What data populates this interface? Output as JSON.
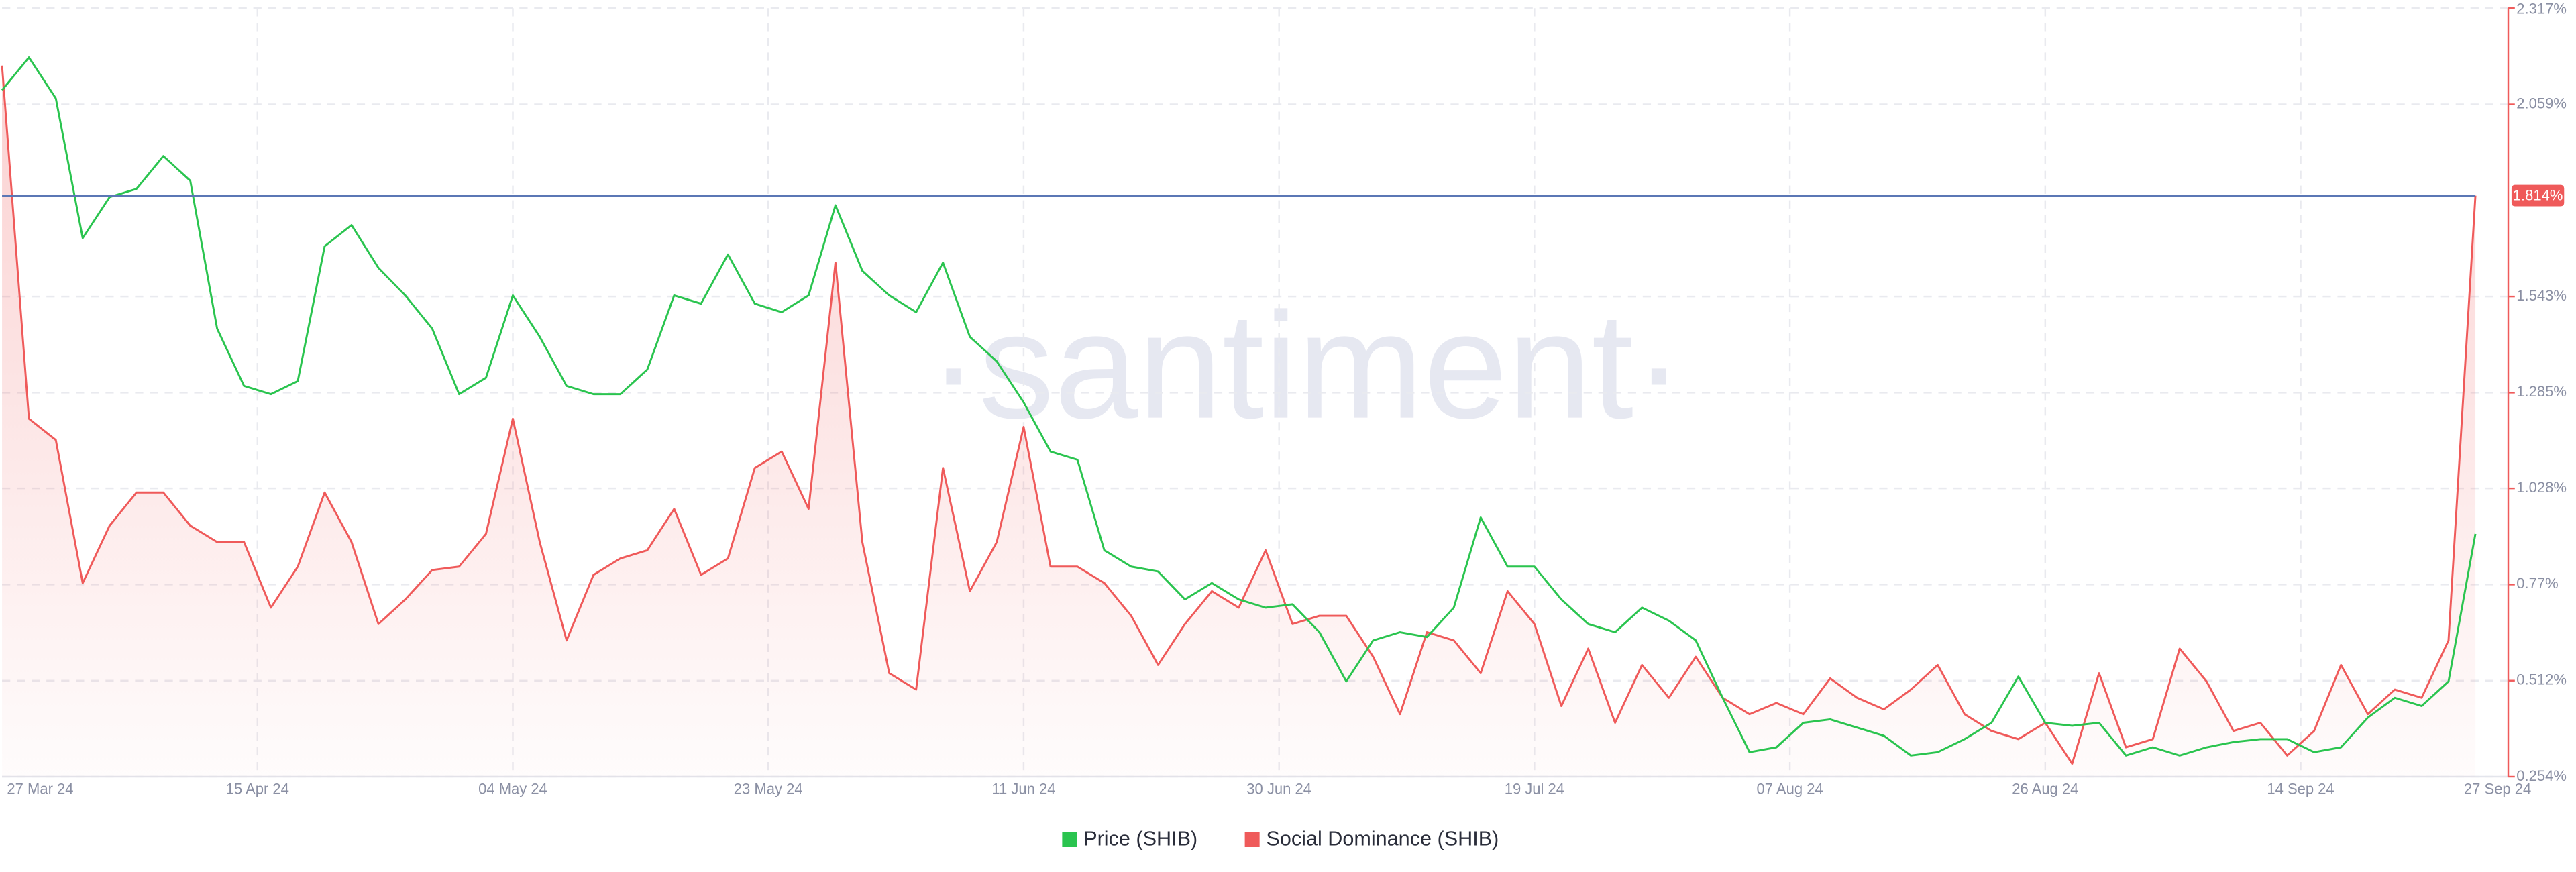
{
  "chart_data": {
    "type": "line",
    "watermark": "·santiment·",
    "x": [
      "2024-03-27",
      "2024-03-29",
      "2024-03-31",
      "2024-04-02",
      "2024-04-04",
      "2024-04-06",
      "2024-04-08",
      "2024-04-10",
      "2024-04-12",
      "2024-04-14",
      "2024-04-16",
      "2024-04-18",
      "2024-04-20",
      "2024-04-22",
      "2024-04-24",
      "2024-04-26",
      "2024-04-28",
      "2024-04-30",
      "2024-05-02",
      "2024-05-04",
      "2024-05-06",
      "2024-05-08",
      "2024-05-10",
      "2024-05-12",
      "2024-05-14",
      "2024-05-16",
      "2024-05-18",
      "2024-05-20",
      "2024-05-22",
      "2024-05-24",
      "2024-05-26",
      "2024-05-28",
      "2024-05-30",
      "2024-06-01",
      "2024-06-03",
      "2024-06-05",
      "2024-06-07",
      "2024-06-09",
      "2024-06-11",
      "2024-06-13",
      "2024-06-15",
      "2024-06-17",
      "2024-06-19",
      "2024-06-21",
      "2024-06-23",
      "2024-06-25",
      "2024-06-27",
      "2024-06-29",
      "2024-07-01",
      "2024-07-03",
      "2024-07-05",
      "2024-07-07",
      "2024-07-09",
      "2024-07-11",
      "2024-07-13",
      "2024-07-15",
      "2024-07-17",
      "2024-07-19",
      "2024-07-21",
      "2024-07-23",
      "2024-07-25",
      "2024-07-27",
      "2024-07-29",
      "2024-07-31",
      "2024-08-02",
      "2024-08-04",
      "2024-08-06",
      "2024-08-08",
      "2024-08-10",
      "2024-08-12",
      "2024-08-14",
      "2024-08-16",
      "2024-08-18",
      "2024-08-20",
      "2024-08-22",
      "2024-08-24",
      "2024-08-26",
      "2024-08-28",
      "2024-08-30",
      "2024-09-01",
      "2024-09-03",
      "2024-09-05",
      "2024-09-07",
      "2024-09-09",
      "2024-09-11",
      "2024-09-13",
      "2024-09-15",
      "2024-09-17",
      "2024-09-19",
      "2024-09-21",
      "2024-09-23",
      "2024-09-25",
      "2024-09-27"
    ],
    "xlim": [
      "2024-03-27",
      "2024-09-27"
    ],
    "xticks": [
      {
        "value": "2024-03-27",
        "label": "27 Mar 24"
      },
      {
        "value": "2024-04-15",
        "label": "15 Apr 24"
      },
      {
        "value": "2024-05-04",
        "label": "04 May 24"
      },
      {
        "value": "2024-05-23",
        "label": "23 May 24"
      },
      {
        "value": "2024-06-11",
        "label": "11 Jun 24"
      },
      {
        "value": "2024-06-30",
        "label": "30 Jun 24"
      },
      {
        "value": "2024-07-19",
        "label": "19 Jul 24"
      },
      {
        "value": "2024-08-07",
        "label": "07 Aug 24"
      },
      {
        "value": "2024-08-26",
        "label": "26 Aug 24"
      },
      {
        "value": "2024-09-14",
        "label": "14 Sep 24"
      },
      {
        "value": "2024-09-27",
        "label": "27 Sep 24"
      }
    ],
    "ylim": [
      0.254,
      2.317
    ],
    "yticks": [
      {
        "value": 2.317,
        "label": "2.317%"
      },
      {
        "value": 2.059,
        "label": "2.059%"
      },
      {
        "value": 1.543,
        "label": "1.543%"
      },
      {
        "value": 1.285,
        "label": "1.285%"
      },
      {
        "value": 1.028,
        "label": "1.028%"
      },
      {
        "value": 0.77,
        "label": "0.77%"
      },
      {
        "value": 0.512,
        "label": "0.512%"
      },
      {
        "value": 0.254,
        "label": "0.254%"
      }
    ],
    "grid": true,
    "legend": "bottom",
    "annotation": {
      "value": 1.814,
      "label": "1.814%",
      "color": "#5b77b5"
    },
    "series": [
      {
        "name": "Price (SHIB)",
        "color": "#2ac44f",
        "fill": false,
        "values": [
          2.097,
          2.185,
          2.075,
          1.7,
          1.81,
          1.832,
          1.92,
          1.854,
          1.457,
          1.303,
          1.281,
          1.316,
          1.678,
          1.735,
          1.62,
          1.546,
          1.457,
          1.281,
          1.325,
          1.546,
          1.435,
          1.303,
          1.281,
          1.281,
          1.347,
          1.546,
          1.524,
          1.656,
          1.524,
          1.501,
          1.546,
          1.788,
          1.612,
          1.546,
          1.501,
          1.634,
          1.435,
          1.369,
          1.259,
          1.127,
          1.105,
          0.862,
          0.818,
          0.805,
          0.73,
          0.774,
          0.73,
          0.708,
          0.717,
          0.642,
          0.51,
          0.62,
          0.642,
          0.629,
          0.708,
          0.95,
          0.818,
          0.818,
          0.73,
          0.664,
          0.642,
          0.708,
          0.673,
          0.62,
          0.466,
          0.32,
          0.333,
          0.399,
          0.408,
          0.386,
          0.364,
          0.311,
          0.32,
          0.355,
          0.399,
          0.523,
          0.399,
          0.391,
          0.399,
          0.311,
          0.333,
          0.311,
          0.333,
          0.347,
          0.355,
          0.355,
          0.32,
          0.333,
          0.413,
          0.466,
          0.444,
          0.51,
          0.906
        ]
      },
      {
        "name": "Social Dominance (SHIB)",
        "color": "#ef5a5a",
        "fill": true,
        "values": [
          2.163,
          1.215,
          1.158,
          0.774,
          0.928,
          1.017,
          1.017,
          0.928,
          0.884,
          0.884,
          0.708,
          0.818,
          1.017,
          0.884,
          0.664,
          0.73,
          0.809,
          0.818,
          0.906,
          1.215,
          0.884,
          0.62,
          0.796,
          0.84,
          0.862,
          0.973,
          0.796,
          0.84,
          1.083,
          1.127,
          0.973,
          1.634,
          0.884,
          0.532,
          0.488,
          1.083,
          0.752,
          0.884,
          1.193,
          0.818,
          0.818,
          0.774,
          0.686,
          0.554,
          0.664,
          0.752,
          0.708,
          0.862,
          0.664,
          0.686,
          0.686,
          0.576,
          0.422,
          0.642,
          0.62,
          0.532,
          0.752,
          0.664,
          0.444,
          0.598,
          0.399,
          0.554,
          0.466,
          0.576,
          0.466,
          0.422,
          0.452,
          0.422,
          0.518,
          0.466,
          0.435,
          0.488,
          0.554,
          0.422,
          0.377,
          0.355,
          0.399,
          0.289,
          0.532,
          0.333,
          0.355,
          0.598,
          0.51,
          0.377,
          0.399,
          0.311,
          0.377,
          0.554,
          0.422,
          0.488,
          0.466,
          0.62,
          1.814
        ]
      }
    ]
  }
}
